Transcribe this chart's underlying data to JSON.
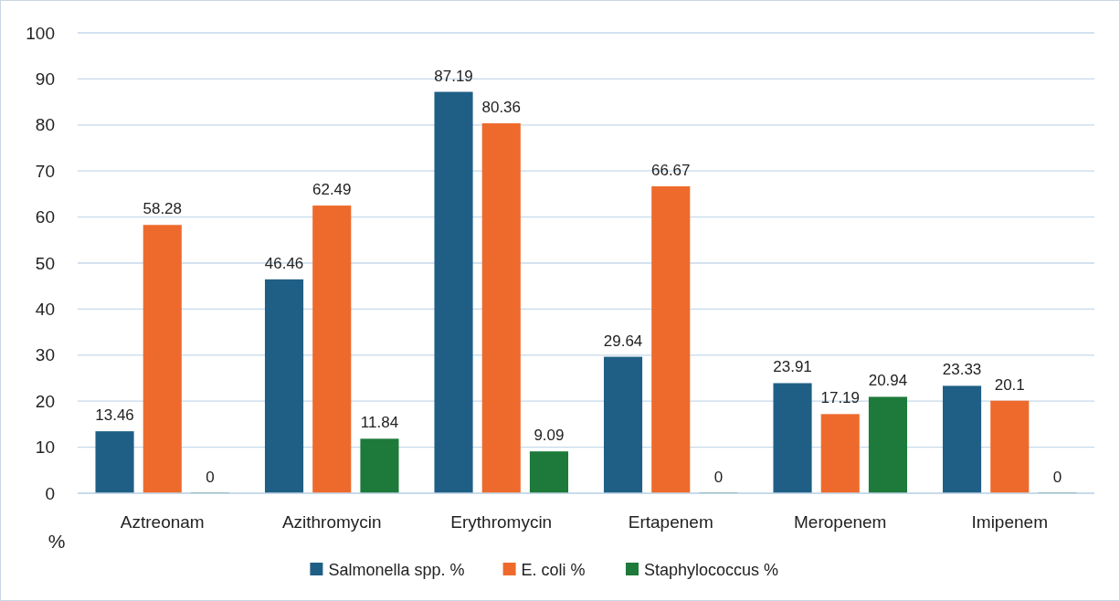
{
  "chart_data": {
    "type": "bar",
    "ylabel": "%",
    "categories": [
      "Aztreonam",
      "Azithromycin",
      "Erythromycin",
      "Ertapenem",
      "Meropenem",
      "Imipenem"
    ],
    "series": [
      {
        "name": "Salmonella spp. %",
        "color": "#1f5f85",
        "values": [
          13.46,
          46.46,
          87.19,
          29.64,
          23.91,
          23.33
        ]
      },
      {
        "name": "E. coli %",
        "color": "#ee6a2c",
        "values": [
          58.28,
          62.49,
          80.36,
          66.67,
          17.19,
          20.1
        ]
      },
      {
        "name": "Staphylococcus %",
        "color": "#1e7a3a",
        "values": [
          0,
          11.84,
          9.09,
          0,
          20.94,
          0
        ]
      }
    ],
    "ylim": [
      0,
      100
    ],
    "yticks": [
      0,
      10,
      20,
      30,
      40,
      50,
      60,
      70,
      80,
      90,
      100
    ],
    "grid": "y",
    "legend": "bottom",
    "data_labels": true
  }
}
